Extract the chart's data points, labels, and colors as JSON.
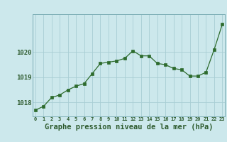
{
  "x": [
    0,
    1,
    2,
    3,
    4,
    5,
    6,
    7,
    8,
    9,
    10,
    11,
    12,
    13,
    14,
    15,
    16,
    17,
    18,
    19,
    20,
    21,
    22,
    23
  ],
  "y": [
    1017.7,
    1017.85,
    1018.2,
    1018.3,
    1018.5,
    1018.65,
    1018.75,
    1019.15,
    1019.55,
    1019.6,
    1019.65,
    1019.75,
    1020.05,
    1019.85,
    1019.85,
    1019.55,
    1019.5,
    1019.35,
    1019.3,
    1019.05,
    1019.05,
    1019.2,
    1020.1,
    1021.1
  ],
  "line_color": "#2d6b2d",
  "marker": "s",
  "marker_size": 2.2,
  "bg_color": "#cce8ec",
  "grid_color": "#a8cdd4",
  "axis_color": "#2d6b2d",
  "label_color": "#2d5a2d",
  "xlabel": "Graphe pression niveau de la mer (hPa)",
  "xlabel_fontsize": 7.5,
  "ytick_labels": [
    "1018",
    "1019",
    "1020"
  ],
  "yticks": [
    1018,
    1019,
    1020
  ],
  "xticks": [
    0,
    1,
    2,
    3,
    4,
    5,
    6,
    7,
    8,
    9,
    10,
    11,
    12,
    13,
    14,
    15,
    16,
    17,
    18,
    19,
    20,
    21,
    22,
    23
  ],
  "ylim": [
    1017.45,
    1021.5
  ],
  "xlim": [
    -0.3,
    23.3
  ]
}
